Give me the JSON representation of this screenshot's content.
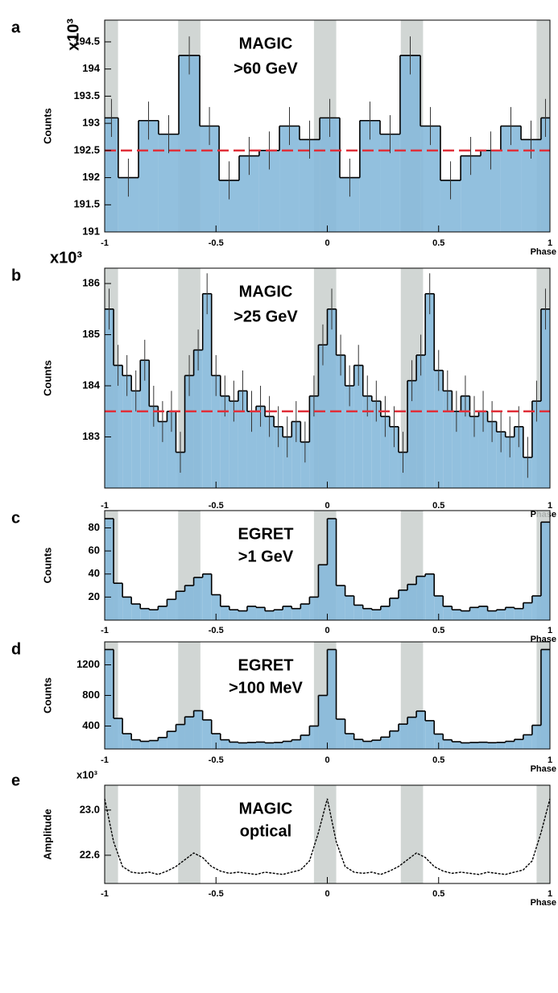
{
  "chart_data": [
    {
      "type": "histogram",
      "panel_label": "a",
      "annotation": [
        "MAGIC",
        ">60 GeV"
      ],
      "ylabel": "Counts",
      "y_multiplier": "x10³",
      "xlabel": "Phase",
      "bins": [
        -1,
        -0.939,
        -0.848,
        -0.758,
        -0.667,
        -0.573,
        -0.486,
        -0.396,
        -0.306,
        -0.215,
        -0.125,
        -0.034,
        0.056,
        0.146,
        0.237,
        0.327,
        0.418,
        0.508,
        0.599,
        0.689,
        0.779,
        0.87,
        0.96,
        1
      ],
      "values": [
        193.1,
        192.0,
        193.05,
        192.8,
        194.25,
        192.95,
        191.95,
        192.4,
        192.5,
        192.95,
        192.7,
        193.1,
        192.0,
        193.05,
        192.8,
        194.25,
        192.95,
        191.95,
        192.4,
        192.5,
        192.95,
        192.7,
        193.1
      ],
      "errors": [
        0.35,
        0.35,
        0.35,
        0.35,
        0.35,
        0.35,
        0.35,
        0.35,
        0.35,
        0.35,
        0.35,
        0.35,
        0.35,
        0.35,
        0.35,
        0.35,
        0.35,
        0.35,
        0.35,
        0.35,
        0.35,
        0.35,
        0.35
      ],
      "color": "#86b9da",
      "reference_line": 192.5,
      "shaded_regions": [
        [
          -1,
          -0.94
        ],
        [
          -0.67,
          -0.57
        ],
        [
          -0.06,
          0.04
        ],
        [
          0.33,
          0.43
        ],
        [
          0.94,
          1
        ]
      ],
      "xlim": [
        -1,
        1
      ],
      "xticks": [
        -1,
        -0.5,
        0,
        0.5,
        1
      ],
      "ylim": [
        191,
        194.9
      ],
      "yticks": [
        191,
        191.5,
        192,
        192.5,
        193,
        193.5,
        194,
        194.5
      ]
    },
    {
      "type": "histogram",
      "panel_label": "b",
      "annotation": [
        "MAGIC",
        ">25 GeV"
      ],
      "ylabel": "Counts",
      "y_multiplier": "x10³",
      "xlabel": "Phase",
      "bins": [
        -1,
        -0.96,
        -0.92,
        -0.88,
        -0.84,
        -0.8,
        -0.76,
        -0.72,
        -0.68,
        -0.64,
        -0.6,
        -0.56,
        -0.52,
        -0.48,
        -0.44,
        -0.4,
        -0.36,
        -0.32,
        -0.28,
        -0.24,
        -0.2,
        -0.16,
        -0.12,
        -0.08,
        -0.04,
        0,
        0.04,
        0.08,
        0.12,
        0.16,
        0.2,
        0.24,
        0.28,
        0.32,
        0.36,
        0.4,
        0.44,
        0.48,
        0.52,
        0.56,
        0.6,
        0.64,
        0.68,
        0.72,
        0.76,
        0.8,
        0.84,
        0.88,
        0.92,
        0.96,
        1
      ],
      "values": [
        185.5,
        184.4,
        184.2,
        183.9,
        184.5,
        183.6,
        183.3,
        183.5,
        182.7,
        184.2,
        184.7,
        185.8,
        184.2,
        183.8,
        183.7,
        183.9,
        183.5,
        183.6,
        183.4,
        183.2,
        183.0,
        183.3,
        182.9,
        183.8,
        184.8,
        185.5,
        184.6,
        184.0,
        184.4,
        183.8,
        183.7,
        183.4,
        183.2,
        182.7,
        184.1,
        184.6,
        185.8,
        184.3,
        183.9,
        183.5,
        183.8,
        183.4,
        183.5,
        183.3,
        183.1,
        183.0,
        183.2,
        182.6,
        183.7,
        185.5
      ],
      "errors": [
        0.4,
        0.4,
        0.4,
        0.4,
        0.4,
        0.4,
        0.4,
        0.4,
        0.4,
        0.4,
        0.4,
        0.4,
        0.4,
        0.4,
        0.4,
        0.4,
        0.4,
        0.4,
        0.4,
        0.4,
        0.4,
        0.4,
        0.4,
        0.4,
        0.4,
        0.4,
        0.4,
        0.4,
        0.4,
        0.4,
        0.4,
        0.4,
        0.4,
        0.4,
        0.4,
        0.4,
        0.4,
        0.4,
        0.4,
        0.4,
        0.4,
        0.4,
        0.4,
        0.4,
        0.4,
        0.4,
        0.4,
        0.4,
        0.4,
        0.4
      ],
      "color": "#86b9da",
      "reference_line": 183.5,
      "shaded_regions": [
        [
          -1,
          -0.94
        ],
        [
          -0.67,
          -0.57
        ],
        [
          -0.06,
          0.04
        ],
        [
          0.33,
          0.43
        ],
        [
          0.94,
          1
        ]
      ],
      "xlim": [
        -1,
        1
      ],
      "xticks": [
        -1,
        -0.5,
        0,
        0.5,
        1
      ],
      "ylim": [
        182,
        186.3
      ],
      "yticks": [
        183,
        184,
        185,
        186
      ]
    },
    {
      "type": "histogram",
      "panel_label": "c",
      "annotation": [
        "EGRET",
        ">1 GeV"
      ],
      "ylabel": "Counts",
      "xlabel": "Phase",
      "bins": [
        -1,
        -0.96,
        -0.92,
        -0.88,
        -0.84,
        -0.8,
        -0.76,
        -0.72,
        -0.68,
        -0.64,
        -0.6,
        -0.56,
        -0.52,
        -0.48,
        -0.44,
        -0.4,
        -0.36,
        -0.32,
        -0.28,
        -0.24,
        -0.2,
        -0.16,
        -0.12,
        -0.08,
        -0.04,
        0,
        0.04,
        0.08,
        0.12,
        0.16,
        0.2,
        0.24,
        0.28,
        0.32,
        0.36,
        0.4,
        0.44,
        0.48,
        0.52,
        0.56,
        0.6,
        0.64,
        0.68,
        0.72,
        0.76,
        0.8,
        0.84,
        0.88,
        0.92,
        0.96,
        1
      ],
      "values": [
        88,
        32,
        20,
        14,
        10,
        9,
        12,
        18,
        25,
        30,
        37,
        40,
        22,
        12,
        9,
        8,
        12,
        11,
        8,
        9,
        12,
        10,
        14,
        20,
        48,
        88,
        30,
        21,
        13,
        10,
        9,
        12,
        19,
        26,
        31,
        38,
        40,
        21,
        12,
        9,
        8,
        11,
        12,
        8,
        9,
        11,
        10,
        15,
        21,
        85
      ],
      "color": "#86b9da",
      "shaded_regions": [
        [
          -1,
          -0.94
        ],
        [
          -0.67,
          -0.57
        ],
        [
          -0.06,
          0.04
        ],
        [
          0.33,
          0.43
        ],
        [
          0.94,
          1
        ]
      ],
      "xlim": [
        -1,
        1
      ],
      "xticks": [
        -1,
        -0.5,
        0,
        0.5,
        1
      ],
      "ylim": [
        0,
        95
      ],
      "yticks": [
        20,
        40,
        60,
        80
      ]
    },
    {
      "type": "histogram",
      "panel_label": "d",
      "annotation": [
        "EGRET",
        ">100 MeV"
      ],
      "ylabel": "Counts",
      "xlabel": "Phase",
      "bins": [
        -1,
        -0.96,
        -0.92,
        -0.88,
        -0.84,
        -0.8,
        -0.76,
        -0.72,
        -0.68,
        -0.64,
        -0.6,
        -0.56,
        -0.52,
        -0.48,
        -0.44,
        -0.4,
        -0.36,
        -0.32,
        -0.28,
        -0.24,
        -0.2,
        -0.16,
        -0.12,
        -0.08,
        -0.04,
        0,
        0.04,
        0.08,
        0.12,
        0.16,
        0.2,
        0.24,
        0.28,
        0.32,
        0.36,
        0.4,
        0.44,
        0.48,
        0.52,
        0.56,
        0.6,
        0.64,
        0.68,
        0.72,
        0.76,
        0.8,
        0.84,
        0.88,
        0.92,
        0.96,
        1
      ],
      "values": [
        1400,
        500,
        300,
        220,
        200,
        210,
        250,
        330,
        420,
        520,
        600,
        480,
        300,
        220,
        190,
        180,
        185,
        190,
        180,
        185,
        200,
        220,
        280,
        400,
        800,
        1400,
        490,
        300,
        225,
        200,
        215,
        255,
        335,
        425,
        515,
        595,
        470,
        295,
        220,
        195,
        180,
        185,
        188,
        182,
        186,
        200,
        225,
        285,
        410,
        1400
      ],
      "color": "#86b9da",
      "shaded_regions": [
        [
          -1,
          -0.94
        ],
        [
          -0.67,
          -0.57
        ],
        [
          -0.06,
          0.04
        ],
        [
          0.33,
          0.43
        ],
        [
          0.94,
          1
        ]
      ],
      "xlim": [
        -1,
        1
      ],
      "xticks": [
        -1,
        -0.5,
        0,
        0.5,
        1
      ],
      "ylim": [
        100,
        1500
      ],
      "yticks": [
        400,
        800,
        1200
      ]
    },
    {
      "type": "line",
      "panel_label": "e",
      "annotation": [
        "MAGIC",
        "optical"
      ],
      "ylabel": "Amplitude",
      "y_multiplier": "x10³",
      "xlabel": "Phase",
      "x": [
        -1,
        -0.96,
        -0.92,
        -0.88,
        -0.84,
        -0.8,
        -0.76,
        -0.72,
        -0.68,
        -0.64,
        -0.6,
        -0.56,
        -0.52,
        -0.48,
        -0.44,
        -0.4,
        -0.36,
        -0.32,
        -0.28,
        -0.24,
        -0.2,
        -0.16,
        -0.12,
        -0.08,
        -0.04,
        0,
        0.04,
        0.08,
        0.12,
        0.16,
        0.2,
        0.24,
        0.28,
        0.32,
        0.36,
        0.4,
        0.44,
        0.48,
        0.52,
        0.56,
        0.6,
        0.64,
        0.68,
        0.72,
        0.76,
        0.8,
        0.84,
        0.88,
        0.92,
        0.96,
        1
      ],
      "values": [
        23.1,
        22.72,
        22.5,
        22.45,
        22.44,
        22.45,
        22.43,
        22.46,
        22.5,
        22.56,
        22.62,
        22.58,
        22.5,
        22.46,
        22.44,
        22.45,
        22.44,
        22.43,
        22.45,
        22.44,
        22.43,
        22.45,
        22.47,
        22.55,
        22.8,
        23.1,
        22.72,
        22.5,
        22.45,
        22.44,
        22.45,
        22.43,
        22.46,
        22.5,
        22.56,
        22.62,
        22.58,
        22.5,
        22.46,
        22.44,
        22.45,
        22.44,
        22.43,
        22.45,
        22.44,
        22.43,
        22.45,
        22.47,
        22.55,
        22.8,
        23.1
      ],
      "color": "#000000",
      "shaded_regions": [
        [
          -1,
          -0.94
        ],
        [
          -0.67,
          -0.57
        ],
        [
          -0.06,
          0.04
        ],
        [
          0.33,
          0.43
        ],
        [
          0.94,
          1
        ]
      ],
      "xlim": [
        -1,
        1
      ],
      "xticks": [
        -1,
        -0.5,
        0,
        0.5,
        1
      ],
      "ylim": [
        22.35,
        23.22
      ],
      "yticks": [
        22.6,
        {
          "value": 23,
          "label": "23.0"
        }
      ]
    }
  ]
}
